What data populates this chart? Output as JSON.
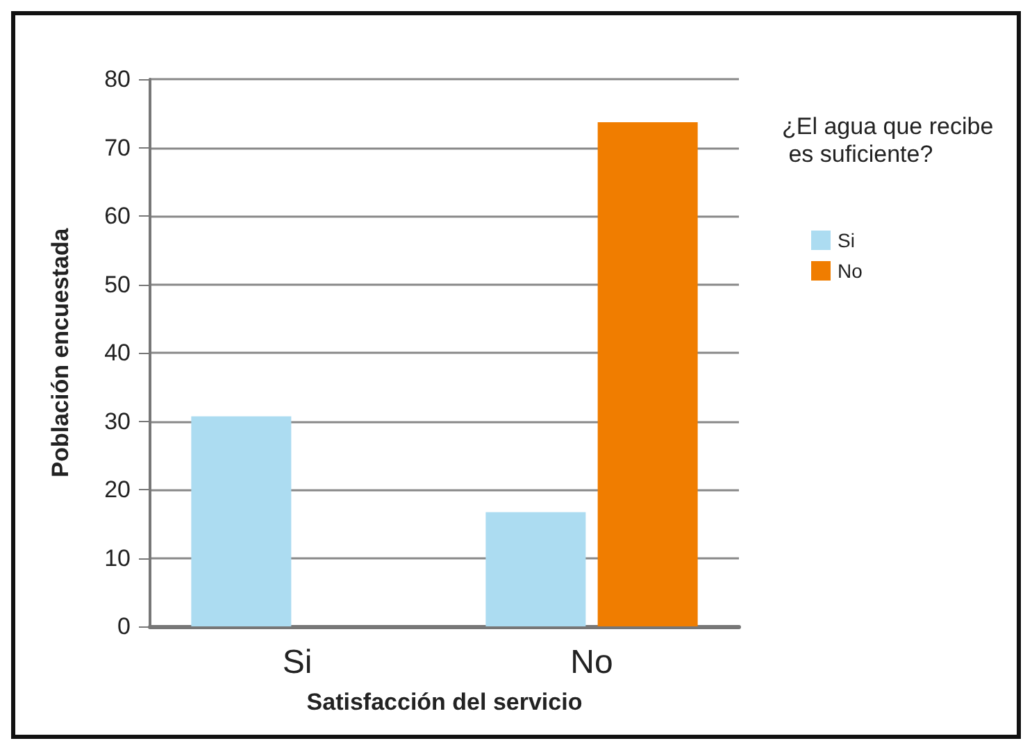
{
  "chart_data": {
    "type": "bar",
    "xlabel": "Satisfacción del servicio",
    "ylabel": "Población encuestada",
    "legend_title": "¿El agua que recibe\n es suficiente?",
    "categories": [
      "Si",
      "No"
    ],
    "series": [
      {
        "name": "Si",
        "color": "#acdcf1",
        "values": [
          30.7,
          16.7
        ]
      },
      {
        "name": "No",
        "color": "#f07d00",
        "values": [
          null,
          73.7
        ]
      }
    ],
    "ylim": [
      0,
      80
    ],
    "yticks": [
      0,
      10,
      20,
      30,
      40,
      50,
      60,
      70,
      80
    ],
    "grid": "y",
    "legend": "top right"
  }
}
